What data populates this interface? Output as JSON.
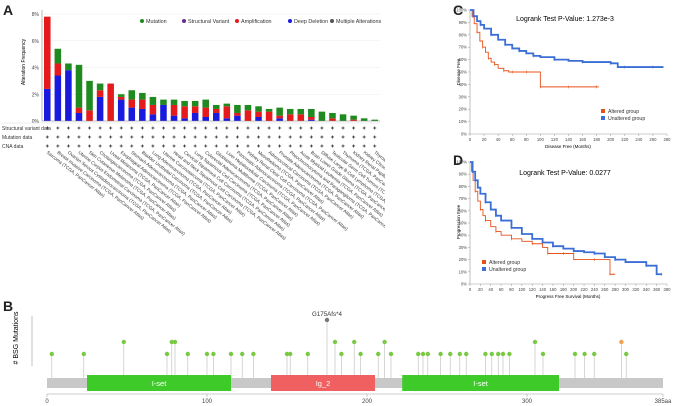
{
  "panels": {
    "a": "A",
    "b": "B",
    "c": "C",
    "d": "D"
  },
  "colors": {
    "mutation": "#1f8a1f",
    "sv": "#6a2c8f",
    "amp": "#e41a1c",
    "del": "#1a1adf",
    "multi": "#555555",
    "altered": "#e8501a",
    "unaltered": "#3b6fd6",
    "domain_green": "#3ecb2a",
    "domain_red": "#f06060",
    "lollipop": "#7ac943"
  },
  "chart_data": [
    {
      "type": "bar",
      "title": "",
      "ylabel": "Alteration Frequency",
      "ylim": [
        0,
        8
      ],
      "yticks": [
        "0%",
        "2%",
        "4%",
        "6%",
        "8%"
      ],
      "legend": [
        "Mutation",
        "Structural Variant",
        "Amplification",
        "Deep Deletion",
        "Multiple Alterations"
      ],
      "row_labels": [
        "Structural variant data",
        "Mutation data",
        "CNA data"
      ],
      "categories": [
        "Sarcoma (TCGA, PanCancer Atlas)",
        "Breast Invasive Carcinoma (TCGA, PanCancer Atlas)",
        "Ovarian Serous Cystadenocarcinoma (TCGA, PanCancer Atlas)",
        "Uterine Corpus Endometrial Carcinoma (TCGA, PanCancer Atlas)",
        "Skin Cutaneous Melanoma (TCGA, PanCancer Atlas)",
        "Cholangiocarcinoma (TCGA, PanCancer Atlas)",
        "Uveal Melanoma (TCGA, PanCancer Atlas)",
        "Esophageal Adenocarcinoma (TCGA, PanCancer Atlas)",
        "Stomach Adenocarcinoma (TCGA, PanCancer Atlas)",
        "Bladder Urothelial Carcinoma (TCGA, PanCancer Atlas)",
        "Lung Adenocarcinoma (TCGA, PanCancer Atlas)",
        "Uterine Carcinosarcoma (TCGA, PanCancer Atlas)",
        "Head and Neck Squamous Cell Carcinoma (TCGA, PanCancer Atlas)",
        "Cervical Squamous Cell Carcinoma (TCGA, PanCancer Atlas)",
        "Lung Squamous Cell Carcinoma (TCGA, PanCancer Atlas)",
        "Colorectal Adenocarcinoma (TCGA, PanCancer Atlas)",
        "Glioblastoma Multiforme (TCGA, PanCancer Atlas)",
        "Liver Hepatocellular Carcinoma (TCGA, PanCancer Atlas)",
        "Pancreatic Adenocarcinoma (TCGA, PanCancer Atlas)",
        "Kidney Renal Clear Cell Carcinoma (TCGA, PanCancer Atlas)",
        "Mesothelioma (TCGA, PanCancer Atlas)",
        "Adrenocortical Carcinoma (TCGA, PanCancer Atlas)",
        "Prostate Adenocarcinoma (TCGA, PanCancer Atlas)",
        "Pheochromocytoma and Paraganglioma (TCGA, PanCancer Atlas)",
        "Acute Myeloid Leukemia (TCGA, PanCancer Atlas)",
        "Brain Lower Grade Glioma (TCGA, PanCancer Atlas)",
        "Diffuse Large B-Cell Lymphoma (TCGA, PanCancer Atlas)",
        "Testicular Germ Cell Tumors (TCGA, PanCancer Atlas)",
        "Thymoma (TCGA, PanCancer Atlas)",
        "Kidney Renal Papillary Cell Carcinoma (TCGA, PanCancer Atlas)",
        "Kidney Chromophobe (TCGA, PanCancer Atlas)",
        "Thyroid Carcinoma (TCGA, PanCancer Atlas)"
      ],
      "series": [
        {
          "name": "Deep Deletion",
          "values": [
            2.4,
            3.4,
            3.8,
            0.6,
            0.0,
            1.8,
            0.0,
            1.6,
            1.0,
            0.9,
            0.5,
            1.2,
            0.4,
            0.2,
            0.6,
            0.3,
            0.6,
            0.2,
            0.4,
            0.0,
            0.3,
            0.0,
            0.2,
            0.0,
            0.0,
            0.1,
            0.0,
            0.0,
            0.0,
            0.0,
            0.0,
            0.0
          ]
        },
        {
          "name": "Amplification",
          "values": [
            5.4,
            0.9,
            0.0,
            0.4,
            0.8,
            0.5,
            2.8,
            0.2,
            0.6,
            0.7,
            0.7,
            0.0,
            0.8,
            0.9,
            0.5,
            0.7,
            0.3,
            0.9,
            0.2,
            0.8,
            0.4,
            0.7,
            0.2,
            0.5,
            0.5,
            0.2,
            0.0,
            0.2,
            0.0,
            0.1,
            0.0,
            0.0
          ]
        },
        {
          "name": "Mutation",
          "values": [
            0.0,
            1.1,
            0.5,
            3.2,
            2.2,
            0.5,
            0.0,
            0.2,
            0.7,
            0.5,
            0.6,
            0.4,
            0.4,
            0.4,
            0.4,
            0.6,
            0.3,
            0.2,
            0.6,
            0.4,
            0.4,
            0.2,
            0.6,
            0.4,
            0.4,
            0.6,
            0.7,
            0.4,
            0.5,
            0.3,
            0.2,
            0.1
          ]
        }
      ]
    },
    {
      "type": "lollipop",
      "ylabel": "# BSG Mutations",
      "xlim": [
        0,
        385
      ],
      "xticks": [
        "0",
        "100",
        "200",
        "300",
        "385aa"
      ],
      "annotation": "G175Afs*4",
      "domains": [
        {
          "name": "I-set",
          "start": 25,
          "end": 115
        },
        {
          "name": "Ig_2",
          "start": 140,
          "end": 205
        },
        {
          "name": "I-set",
          "start": 222,
          "end": 320
        }
      ],
      "mutations": [
        {
          "pos": 3,
          "count": 1
        },
        {
          "pos": 23,
          "count": 1
        },
        {
          "pos": 48,
          "count": 2
        },
        {
          "pos": 75,
          "count": 1
        },
        {
          "pos": 78,
          "count": 2
        },
        {
          "pos": 80,
          "count": 2
        },
        {
          "pos": 88,
          "count": 1
        },
        {
          "pos": 100,
          "count": 1
        },
        {
          "pos": 104,
          "count": 1
        },
        {
          "pos": 115,
          "count": 1
        },
        {
          "pos": 122,
          "count": 1
        },
        {
          "pos": 129,
          "count": 1
        },
        {
          "pos": 150,
          "count": 1
        },
        {
          "pos": 152,
          "count": 1
        },
        {
          "pos": 163,
          "count": 1
        },
        {
          "pos": 175,
          "count": 4
        },
        {
          "pos": 180,
          "count": 2
        },
        {
          "pos": 184,
          "count": 1
        },
        {
          "pos": 192,
          "count": 2
        },
        {
          "pos": 196,
          "count": 1
        },
        {
          "pos": 207,
          "count": 1
        },
        {
          "pos": 211,
          "count": 2
        },
        {
          "pos": 215,
          "count": 1
        },
        {
          "pos": 232,
          "count": 1
        },
        {
          "pos": 235,
          "count": 1
        },
        {
          "pos": 238,
          "count": 1
        },
        {
          "pos": 246,
          "count": 1
        },
        {
          "pos": 252,
          "count": 1
        },
        {
          "pos": 258,
          "count": 1
        },
        {
          "pos": 262,
          "count": 1
        },
        {
          "pos": 274,
          "count": 1
        },
        {
          "pos": 278,
          "count": 1
        },
        {
          "pos": 282,
          "count": 1
        },
        {
          "pos": 285,
          "count": 1
        },
        {
          "pos": 289,
          "count": 1
        },
        {
          "pos": 305,
          "count": 2
        },
        {
          "pos": 310,
          "count": 1
        },
        {
          "pos": 330,
          "count": 1
        },
        {
          "pos": 336,
          "count": 1
        },
        {
          "pos": 342,
          "count": 1
        },
        {
          "pos": 359,
          "count": 2
        },
        {
          "pos": 362,
          "count": 1
        }
      ]
    },
    {
      "type": "line",
      "title": "Logrank Test P-Value: 1.273e-3",
      "xlabel": "Disease Free (Months)",
      "ylabel": "Disease Free",
      "xlim": [
        0,
        280
      ],
      "ylim": [
        0,
        100
      ],
      "xticks": [
        "0",
        "20",
        "40",
        "60",
        "80",
        "100",
        "120",
        "140",
        "160",
        "180",
        "200",
        "220",
        "240",
        "260",
        "280"
      ],
      "yticks": [
        "0%",
        "10%",
        "20%",
        "30%",
        "40%",
        "50%",
        "60%",
        "70%",
        "80%",
        "90%",
        "100%"
      ],
      "legend": [
        "Altered group",
        "Unaltered group"
      ],
      "series": [
        {
          "name": "Altered group",
          "x": [
            0,
            3,
            6,
            10,
            14,
            18,
            22,
            26,
            30,
            35,
            40,
            48,
            55,
            60,
            70,
            80,
            90,
            100,
            120,
            140,
            160,
            180,
            183
          ],
          "y": [
            100,
            95,
            89,
            82,
            75,
            70,
            66,
            61,
            58,
            56,
            53,
            51,
            50,
            50,
            50,
            50,
            50,
            38,
            38,
            38,
            38,
            38,
            38
          ]
        },
        {
          "name": "Unaltered group",
          "x": [
            0,
            5,
            10,
            15,
            20,
            30,
            40,
            50,
            60,
            70,
            80,
            90,
            100,
            120,
            140,
            160,
            180,
            200,
            210,
            220,
            240,
            260,
            275
          ],
          "y": [
            100,
            95,
            91,
            88,
            85,
            80,
            76,
            72,
            69,
            67,
            65,
            63,
            62,
            60,
            59,
            58,
            58,
            57,
            54,
            54,
            54,
            54,
            54
          ]
        }
      ]
    },
    {
      "type": "line",
      "title": "Logrank Test P-Value: 0.0277",
      "xlabel": "Progress Free Survival (Months)",
      "ylabel": "Progression Free",
      "xlim": [
        0,
        380
      ],
      "ylim": [
        0,
        100
      ],
      "xticks": [
        "0",
        "20",
        "40",
        "60",
        "80",
        "100",
        "120",
        "140",
        "160",
        "180",
        "200",
        "220",
        "240",
        "260",
        "280",
        "300",
        "320",
        "340",
        "360",
        "380"
      ],
      "yticks": [
        "0%",
        "10%",
        "20%",
        "30%",
        "40%",
        "50%",
        "60%",
        "70%",
        "80%",
        "90%",
        "100%"
      ],
      "legend": [
        "Altered group",
        "Unaltered group"
      ],
      "series": [
        {
          "name": "Altered group",
          "x": [
            0,
            3,
            6,
            10,
            15,
            20,
            25,
            30,
            40,
            50,
            60,
            80,
            100,
            120,
            140,
            150,
            160,
            180,
            200,
            240,
            250,
            270,
            280
          ],
          "y": [
            100,
            93,
            85,
            76,
            68,
            61,
            56,
            52,
            47,
            43,
            40,
            37,
            35,
            33,
            30,
            25,
            25,
            25,
            20,
            20,
            20,
            8,
            8
          ]
        },
        {
          "name": "Unaltered group",
          "x": [
            0,
            5,
            10,
            15,
            20,
            30,
            40,
            50,
            60,
            80,
            100,
            120,
            140,
            160,
            180,
            200,
            220,
            240,
            260,
            280,
            300,
            340,
            360,
            370
          ],
          "y": [
            100,
            92,
            85,
            79,
            74,
            67,
            61,
            56,
            52,
            46,
            41,
            37,
            34,
            31,
            29,
            27,
            26,
            25,
            22,
            20,
            18,
            15,
            8,
            8
          ]
        }
      ]
    }
  ]
}
